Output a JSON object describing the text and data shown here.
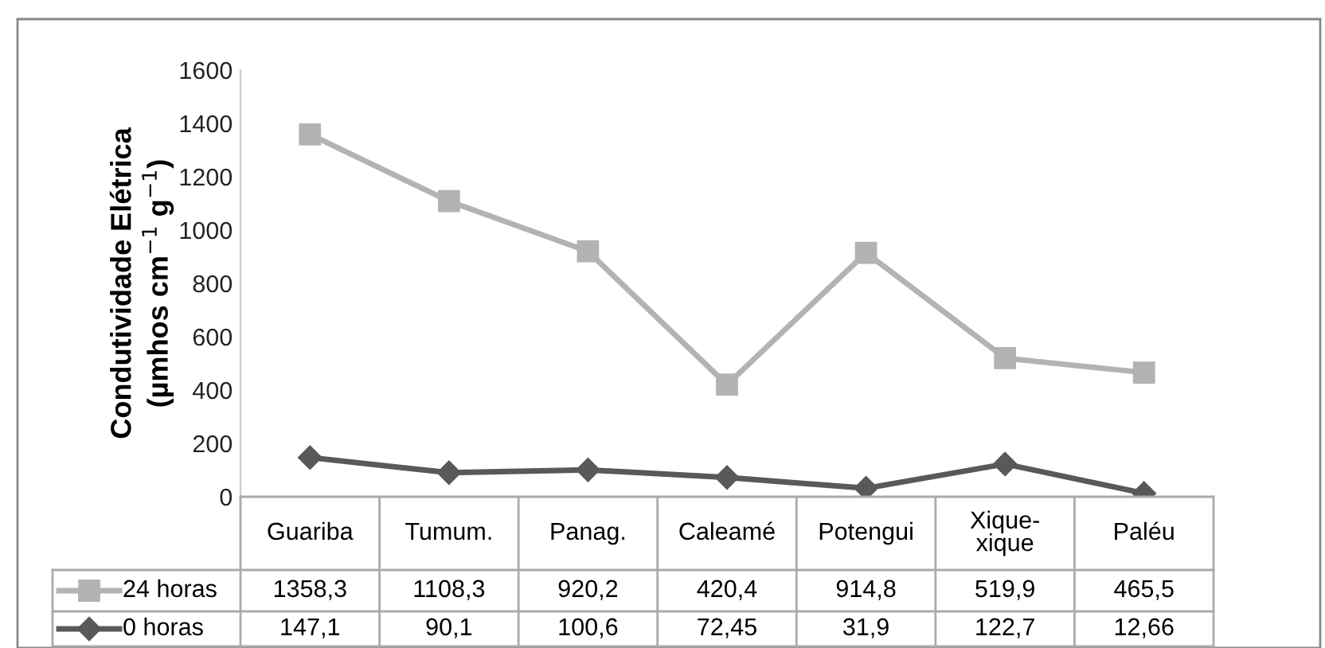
{
  "chart_data": {
    "type": "line",
    "ylabel": "Condutividade Elétrica\n(µmhos cm$^{−1}$ g$^{−1}$)",
    "categories": [
      "Guariba",
      "Tumum.",
      "Panag.",
      "Caleamé",
      "Potengui",
      "Xique-\nxique",
      "Paléu"
    ],
    "series": [
      {
        "name": "24 horas",
        "color": "#b3b3b3",
        "marker": "square",
        "values": [
          1358.3,
          1108.3,
          920.2,
          420.4,
          914.8,
          519.9,
          465.5
        ],
        "value_labels": [
          "1358,3",
          "1108,3",
          "920,2",
          "420,4",
          "914,8",
          "519,9",
          "465,5"
        ]
      },
      {
        "name": "0 horas",
        "color": "#595959",
        "marker": "diamond",
        "values": [
          147.1,
          90.1,
          100.6,
          72.45,
          31.9,
          122.7,
          12.66
        ],
        "value_labels": [
          "147,1",
          "90,1",
          "100,6",
          "72,45",
          "31,9",
          "122,7",
          "12,66"
        ]
      }
    ],
    "ylim": [
      0,
      1600
    ],
    "yticks": [
      0,
      200,
      400,
      600,
      800,
      1000,
      1200,
      1400,
      1600
    ],
    "grid": false,
    "legend": "bottom",
    "line_style": "solid"
  }
}
